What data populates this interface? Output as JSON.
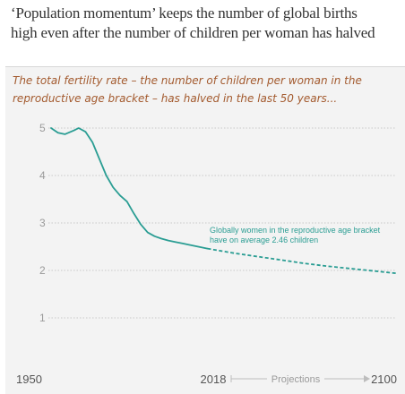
{
  "title": "‘Population momentum’ keeps the number of global births high even after the number of children per woman has halved",
  "chart_data": {
    "type": "line",
    "subtitle": "The total fertility rate – the number of children per woman in the reproductive age bracket – has halved in the last 50 years...",
    "xlim": [
      1950,
      2100
    ],
    "ylim": [
      1,
      5
    ],
    "yticks": [
      1,
      2,
      3,
      4,
      5
    ],
    "xticks": [
      1950,
      2018,
      2100
    ],
    "projection_label": "Projections",
    "projection_start": 2018,
    "grid": true,
    "series": [
      {
        "color": "#2a9d93",
        "historical": {
          "x": [
            1950,
            1953,
            1956,
            1960,
            1962,
            1965,
            1968,
            1971,
            1974,
            1977,
            1980,
            1983,
            1986,
            1989,
            1992,
            1995,
            1998,
            2001,
            2004,
            2007,
            2010,
            2014,
            2018
          ],
          "y": [
            5.0,
            4.9,
            4.87,
            4.95,
            5.0,
            4.92,
            4.7,
            4.35,
            4.0,
            3.75,
            3.58,
            3.45,
            3.2,
            2.97,
            2.8,
            2.72,
            2.67,
            2.63,
            2.6,
            2.57,
            2.54,
            2.5,
            2.46
          ]
        },
        "projection": {
          "x": [
            2018,
            2030,
            2040,
            2050,
            2060,
            2070,
            2080,
            2090,
            2100
          ],
          "y": [
            2.46,
            2.36,
            2.29,
            2.22,
            2.15,
            2.09,
            2.04,
            1.99,
            1.94
          ]
        }
      }
    ],
    "annotation": {
      "lines": [
        "Globally women in the reproductive age bracket",
        "have on average 2.46 children"
      ],
      "color": "#2a9d93"
    }
  }
}
